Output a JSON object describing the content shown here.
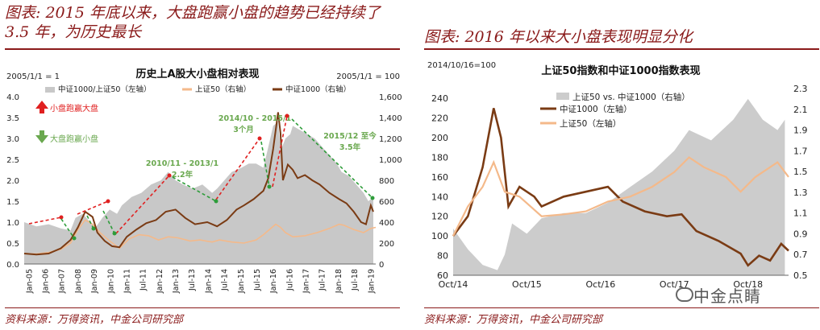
{
  "left_panel": {
    "figure_title": "图表: 2015 年底以来，大盘跑赢小盘的趋势已经持续了 3.5 年，为历史最长",
    "source": "资料来源：万得资讯，中金公司研究部",
    "chart_data": {
      "type": "area+line",
      "title": "历史上A股大小盘相对表现",
      "y_left_label": "2005/1/1 = 1",
      "y_right_label": "2005/1/1 = 100",
      "y_left_ticks": [
        "0.0",
        "0.5",
        "1.0",
        "1.5",
        "2.0",
        "2.5",
        "3.0",
        "3.5",
        "4.0"
      ],
      "y_right_ticks": [
        "0",
        "200",
        "400",
        "600",
        "800",
        "1,000",
        "1,200",
        "1,400",
        "1,600"
      ],
      "ylim_left": [
        0,
        4
      ],
      "ylim_right": [
        0,
        1600
      ],
      "x_ticks": [
        "Jan-05",
        "Jan-06",
        "Jan-07",
        "Jan-08",
        "Jan-09",
        "Jan-10",
        "Jan-11",
        "Jul-11",
        "Jan-12",
        "Jan-13",
        "Jul-13",
        "Jan-14",
        "Jul-14",
        "Jan-15",
        "Jul-15",
        "Jan-16",
        "Jul-16",
        "Jan-17",
        "Jul-17",
        "Jan-18",
        "Jul-18",
        "Jan-19"
      ],
      "series": [
        {
          "name": "中证1000/上证50（左轴）",
          "axis": "left",
          "color": "#c8c8c8",
          "x": [
            2005.0,
            2005.5,
            2006.0,
            2006.5,
            2006.9,
            2007.1,
            2007.4,
            2007.7,
            2007.9,
            2008.2,
            2008.5,
            2008.8,
            2009.0,
            2009.4,
            2009.8,
            2010.2,
            2010.6,
            2010.9,
            2011.2,
            2011.5,
            2011.9,
            2012.3,
            2012.7,
            2012.9,
            2013.2,
            2013.5,
            2013.9,
            2014.2,
            2014.5,
            2014.8,
            2015.0,
            2015.2,
            2015.4,
            2015.5,
            2015.7,
            2015.9,
            2016.0,
            2016.3,
            2016.6,
            2016.9,
            2017.2,
            2017.5,
            2017.8,
            2018.0,
            2018.3,
            2018.6,
            2018.9,
            2019.1,
            2019.3
          ],
          "values": [
            1.0,
            0.9,
            0.95,
            0.85,
            0.8,
            1.1,
            1.2,
            1.0,
            0.85,
            1.1,
            1.3,
            1.2,
            1.4,
            1.6,
            1.7,
            1.9,
            2.0,
            2.2,
            2.0,
            1.9,
            1.8,
            1.9,
            1.7,
            1.8,
            2.0,
            2.2,
            2.3,
            2.4,
            2.4,
            2.3,
            2.8,
            3.3,
            3.4,
            2.7,
            3.0,
            3.1,
            3.3,
            3.2,
            3.1,
            3.0,
            2.8,
            2.6,
            2.4,
            2.2,
            2.1,
            1.9,
            1.7,
            1.5,
            1.6
          ]
        },
        {
          "name": "上证50（右轴）",
          "axis": "right",
          "color": "#f4b98a",
          "x": [
            2005.0,
            2005.5,
            2006.0,
            2006.5,
            2006.9,
            2007.2,
            2007.5,
            2007.8,
            2008.1,
            2008.5,
            2008.9,
            2009.3,
            2009.7,
            2010.1,
            2010.5,
            2010.9,
            2011.3,
            2011.8,
            2012.2,
            2012.7,
            2013.0,
            2013.5,
            2014.0,
            2014.5,
            2014.8,
            2015.0,
            2015.3,
            2015.5,
            2015.7,
            2016.0,
            2016.5,
            2017.0,
            2017.5,
            2017.9,
            2018.1,
            2018.5,
            2018.9,
            2019.2,
            2019.4
          ],
          "values": [
            100,
            95,
            110,
            140,
            200,
            330,
            420,
            380,
            300,
            220,
            150,
            240,
            280,
            270,
            230,
            260,
            250,
            220,
            230,
            210,
            230,
            210,
            200,
            230,
            280,
            320,
            380,
            350,
            300,
            260,
            270,
            300,
            340,
            380,
            370,
            330,
            300,
            340,
            350
          ]
        },
        {
          "name": "中证1000（右轴）",
          "axis": "right",
          "color": "#7a3b14",
          "x": [
            2005.0,
            2005.5,
            2006.0,
            2006.5,
            2006.9,
            2007.2,
            2007.5,
            2007.8,
            2008.0,
            2008.3,
            2008.6,
            2008.9,
            2009.2,
            2009.6,
            2010.0,
            2010.4,
            2010.8,
            2011.2,
            2011.6,
            2012.0,
            2012.5,
            2012.9,
            2013.3,
            2013.7,
            2014.0,
            2014.4,
            2014.8,
            2015.0,
            2015.2,
            2015.4,
            2015.5,
            2015.6,
            2015.8,
            2016.0,
            2016.2,
            2016.5,
            2016.8,
            2017.1,
            2017.5,
            2017.9,
            2018.2,
            2018.5,
            2018.8,
            2019.0,
            2019.2,
            2019.3
          ],
          "values": [
            100,
            90,
            100,
            150,
            230,
            350,
            500,
            450,
            300,
            220,
            170,
            160,
            260,
            330,
            390,
            420,
            500,
            520,
            440,
            380,
            400,
            360,
            420,
            520,
            560,
            620,
            700,
            820,
            1100,
            1450,
            1250,
            800,
            950,
            900,
            820,
            850,
            800,
            760,
            680,
            620,
            580,
            500,
            400,
            380,
            560,
            500
          ]
        }
      ],
      "annotations": [
        {
          "text": "小盘跑赢大盘",
          "kind": "legend-up",
          "color": "#e02020"
        },
        {
          "text": "大盘跑赢小盘",
          "kind": "legend-down",
          "color": "#6aa84f"
        },
        {
          "text": "2010/11 - 2013/1",
          "color": "#6aa84f"
        },
        {
          "text": "2.2年",
          "color": "#6aa84f"
        },
        {
          "text": "2014/10 - 2015/1",
          "color": "#6aa84f"
        },
        {
          "text": "3个月",
          "color": "#6aa84f"
        },
        {
          "text": "2015/12 至今",
          "color": "#6aa84f"
        },
        {
          "text": "3.5年",
          "color": "#6aa84f"
        }
      ]
    }
  },
  "right_panel": {
    "figure_title": "图表: 2016 年以来大小盘表现明显分化",
    "source": "资料来源：万得资讯，中金公司研究部",
    "chart_data": {
      "type": "area+line",
      "title": "上证50指数和中证1000指数表现",
      "y_left_label": "2014/10/16=100",
      "y_left_ticks": [
        "60",
        "80",
        "100",
        "120",
        "140",
        "160",
        "180",
        "200",
        "220",
        "240"
      ],
      "y_right_ticks": [
        "0.5",
        "0.7",
        "0.9",
        "1.1",
        "1.3",
        "1.5",
        "1.7",
        "1.9",
        "2.1",
        "2.3"
      ],
      "ylim_left": [
        60,
        250
      ],
      "ylim_right": [
        0.5,
        2.3
      ],
      "x_ticks": [
        "Oct/14",
        "Oct/15",
        "Oct/16",
        "Oct/17",
        "Oct/18"
      ],
      "series": [
        {
          "name": "上证50 vs. 中证1000（右轴）",
          "axis": "right",
          "color": "#cccccc",
          "x": [
            2014.8,
            2015.0,
            2015.2,
            2015.4,
            2015.5,
            2015.6,
            2015.8,
            2016.0,
            2016.3,
            2016.6,
            2016.9,
            2017.2,
            2017.5,
            2017.8,
            2018.0,
            2018.3,
            2018.6,
            2018.8,
            2018.9,
            2019.0,
            2019.2,
            2019.3
          ],
          "values": [
            0.95,
            0.75,
            0.6,
            0.55,
            0.7,
            1.0,
            0.9,
            1.05,
            1.1,
            1.1,
            1.2,
            1.35,
            1.5,
            1.7,
            1.9,
            1.8,
            2.0,
            2.2,
            2.1,
            2.0,
            1.9,
            2.0
          ]
        },
        {
          "name": "中证1000（左轴）",
          "axis": "left",
          "color": "#7a3b14",
          "x": [
            2014.8,
            2015.0,
            2015.2,
            2015.35,
            2015.45,
            2015.55,
            2015.7,
            2015.9,
            2016.0,
            2016.3,
            2016.6,
            2016.9,
            2017.1,
            2017.4,
            2017.7,
            2017.9,
            2018.1,
            2018.4,
            2018.7,
            2018.8,
            2018.95,
            2019.1,
            2019.25,
            2019.35
          ],
          "values": [
            100,
            120,
            170,
            230,
            200,
            130,
            150,
            140,
            130,
            140,
            145,
            150,
            135,
            125,
            120,
            122,
            105,
            95,
            82,
            70,
            80,
            75,
            92,
            85
          ]
        },
        {
          "name": "上证50（左轴）",
          "axis": "left",
          "color": "#f4b98a",
          "x": [
            2014.8,
            2015.0,
            2015.2,
            2015.35,
            2015.5,
            2015.7,
            2016.0,
            2016.3,
            2016.6,
            2016.9,
            2017.2,
            2017.5,
            2017.8,
            2018.0,
            2018.2,
            2018.5,
            2018.7,
            2018.9,
            2019.0,
            2019.2,
            2019.35
          ],
          "values": [
            100,
            130,
            150,
            175,
            145,
            140,
            120,
            122,
            125,
            135,
            140,
            150,
            165,
            180,
            170,
            160,
            145,
            160,
            165,
            175,
            160
          ]
        }
      ]
    }
  },
  "watermark": "中金点睛"
}
